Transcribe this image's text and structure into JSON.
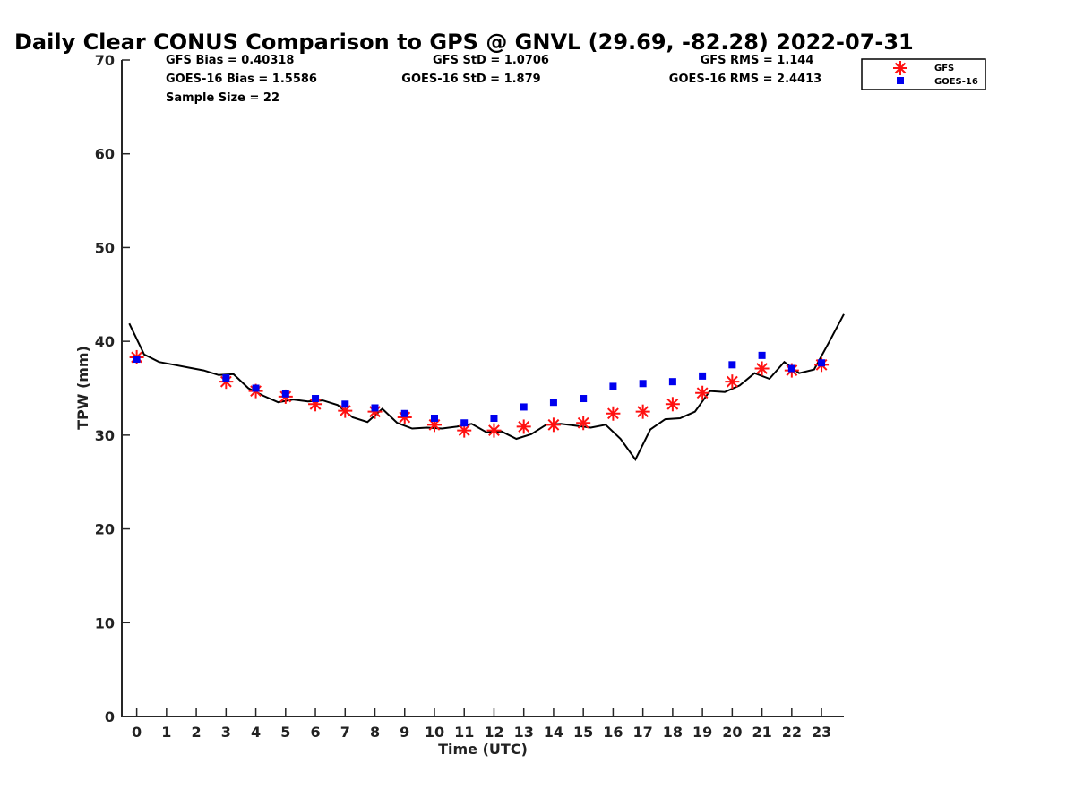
{
  "chart_data": {
    "type": "line",
    "title": "Daily Clear CONUS Comparison to GPS @ GNVL (29.69, -82.28) 2022-07-31",
    "xlabel": "Time (UTC)",
    "ylabel": "TPW (mm)",
    "xlim": [
      -0.5,
      23.75
    ],
    "ylim": [
      0,
      70
    ],
    "x_ticks": [
      0,
      1,
      2,
      3,
      4,
      5,
      6,
      7,
      8,
      9,
      10,
      11,
      12,
      13,
      14,
      15,
      16,
      17,
      18,
      19,
      20,
      21,
      22,
      23
    ],
    "y_ticks": [
      0,
      10,
      20,
      30,
      40,
      50,
      60,
      70
    ],
    "grid": false,
    "legend_position": "top-right",
    "stats": {
      "gfs_bias": "GFS Bias = 0.40318",
      "gfs_std": "GFS StD = 1.0706",
      "gfs_rms": "GFS RMS = 1.144",
      "goes_bias": "GOES-16 Bias = 1.5586",
      "goes_std": "GOES-16 StD = 1.879",
      "goes_rms": "GOES-16 RMS = 2.4413",
      "sample_size": "Sample Size = 22"
    },
    "series": [
      {
        "name": "GPS",
        "kind": "line",
        "color": "#000000",
        "x": [
          -0.25,
          0.25,
          0.75,
          1.25,
          1.75,
          2.25,
          2.75,
          3.25,
          3.75,
          4.25,
          4.75,
          5.25,
          5.75,
          6.25,
          6.75,
          7.25,
          7.75,
          8.25,
          8.75,
          9.25,
          9.75,
          10.25,
          10.75,
          11.25,
          11.75,
          12.25,
          12.75,
          13.25,
          13.75,
          14.25,
          14.75,
          15.25,
          15.75,
          16.25,
          16.75,
          17.25,
          17.75,
          18.25,
          18.75,
          19.25,
          19.75,
          20.25,
          20.75,
          21.25,
          21.75,
          22.25,
          22.75,
          23.25,
          23.75
        ],
        "y": [
          41.9,
          38.6,
          37.8,
          37.5,
          37.2,
          36.9,
          36.4,
          36.5,
          35.0,
          34.2,
          33.5,
          33.8,
          33.6,
          33.7,
          33.2,
          31.9,
          31.4,
          32.8,
          31.3,
          30.7,
          30.8,
          30.7,
          30.9,
          31.2,
          30.3,
          30.4,
          29.6,
          30.1,
          31.1,
          31.2,
          31.0,
          30.8,
          31.1,
          29.6,
          27.4,
          30.6,
          31.7,
          31.8,
          32.5,
          34.7,
          34.6,
          35.3,
          36.6,
          36.0,
          37.8,
          36.6,
          37.0,
          39.9,
          42.9
        ]
      },
      {
        "name": "GFS",
        "kind": "marker",
        "marker": "asterisk",
        "color": "#ff1111",
        "x": [
          0,
          3,
          4,
          5,
          6,
          7,
          8,
          9,
          10,
          11,
          12,
          13,
          14,
          15,
          16,
          17,
          18,
          19,
          20,
          21,
          22,
          23
        ],
        "y": [
          38.3,
          35.7,
          34.7,
          34.1,
          33.3,
          32.6,
          32.5,
          31.9,
          31.1,
          30.5,
          30.5,
          30.9,
          31.1,
          31.3,
          32.3,
          32.5,
          33.3,
          34.5,
          35.7,
          37.1,
          36.9,
          37.5
        ]
      },
      {
        "name": "GOES-16",
        "kind": "marker",
        "marker": "square",
        "color": "#0000ee",
        "x": [
          0,
          3,
          4,
          5,
          6,
          7,
          8,
          9,
          10,
          11,
          12,
          13,
          14,
          15,
          16,
          17,
          18,
          19,
          20,
          21,
          22,
          23
        ],
        "y": [
          38.1,
          36.1,
          35.0,
          34.4,
          33.9,
          33.3,
          32.9,
          32.3,
          31.8,
          31.3,
          31.8,
          33.0,
          33.5,
          33.9,
          35.2,
          35.5,
          35.7,
          36.3,
          37.5,
          38.5,
          37.1,
          37.7
        ]
      }
    ]
  }
}
